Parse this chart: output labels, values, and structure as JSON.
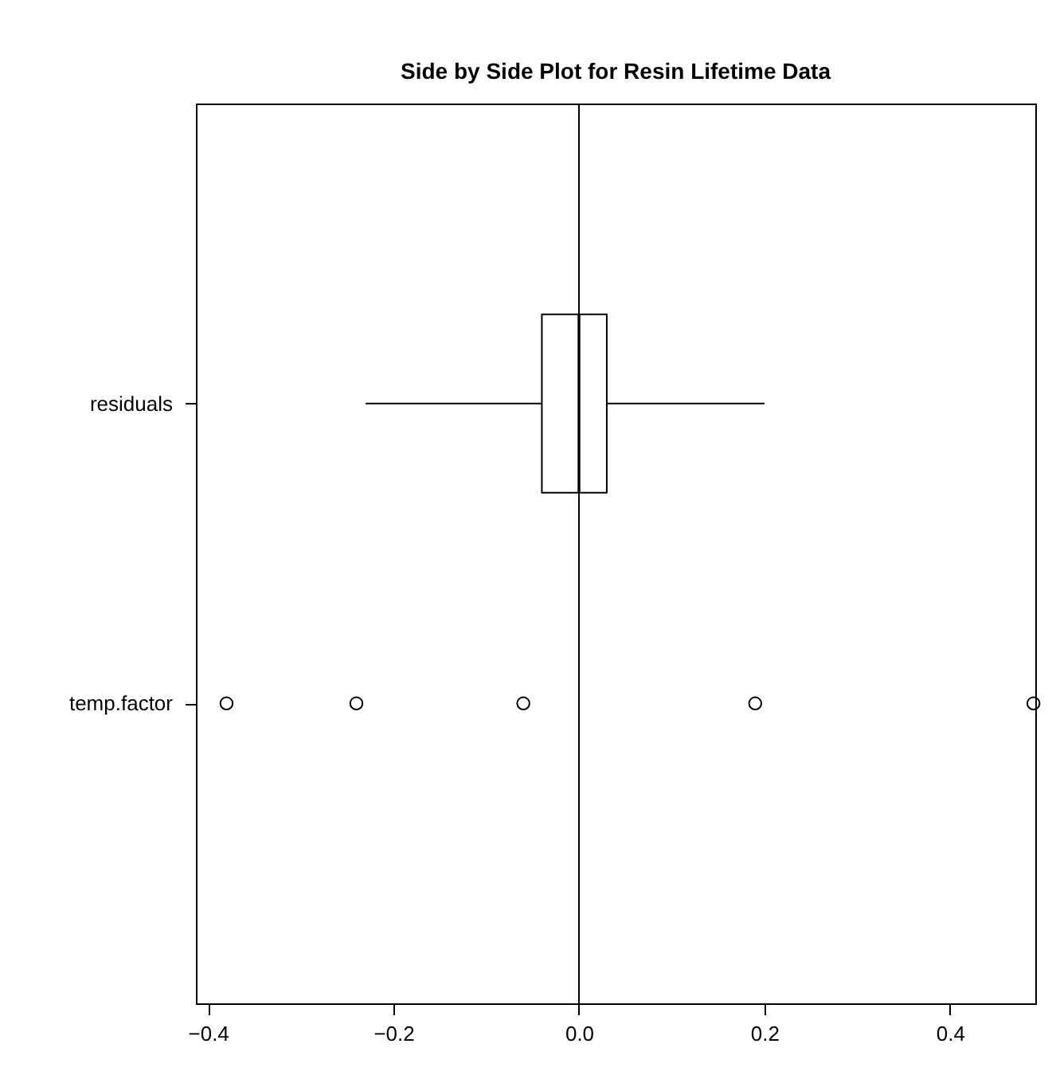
{
  "chart_data": {
    "type": "box",
    "title": "Side by Side Plot for Resin Lifetime Data",
    "orientation": "horizontal",
    "categories": [
      "residuals",
      "temp.factor"
    ],
    "series": [
      {
        "color": "#000000",
        "boxes": [
          {
            "low": -0.23,
            "q1": -0.04,
            "median": 0,
            "q3": 0.03,
            "high": 0.2
          },
          null
        ]
      },
      {
        "type": "scatter",
        "color": "#000000",
        "marker": "circle",
        "x": [
          "temp.factor",
          "temp.factor",
          "temp.factor",
          "temp.factor",
          "temp.factor"
        ],
        "values": [
          -0.38,
          -0.24,
          -0.06,
          0.19,
          0.49
        ]
      }
    ],
    "xlim": [
      -0.413,
      0.492
    ],
    "xticks": [
      {
        "value": -0.4,
        "label": "−0.4"
      },
      {
        "value": -0.2,
        "label": "−0.2"
      },
      {
        "value": 0,
        "label": "0.0"
      },
      {
        "value": 0.2,
        "label": "0.2"
      },
      {
        "value": 0.4,
        "label": "0.4"
      }
    ],
    "ref_lines": [
      {
        "axis": "x",
        "value": 0,
        "color": "#000000"
      }
    ],
    "grid": false
  }
}
